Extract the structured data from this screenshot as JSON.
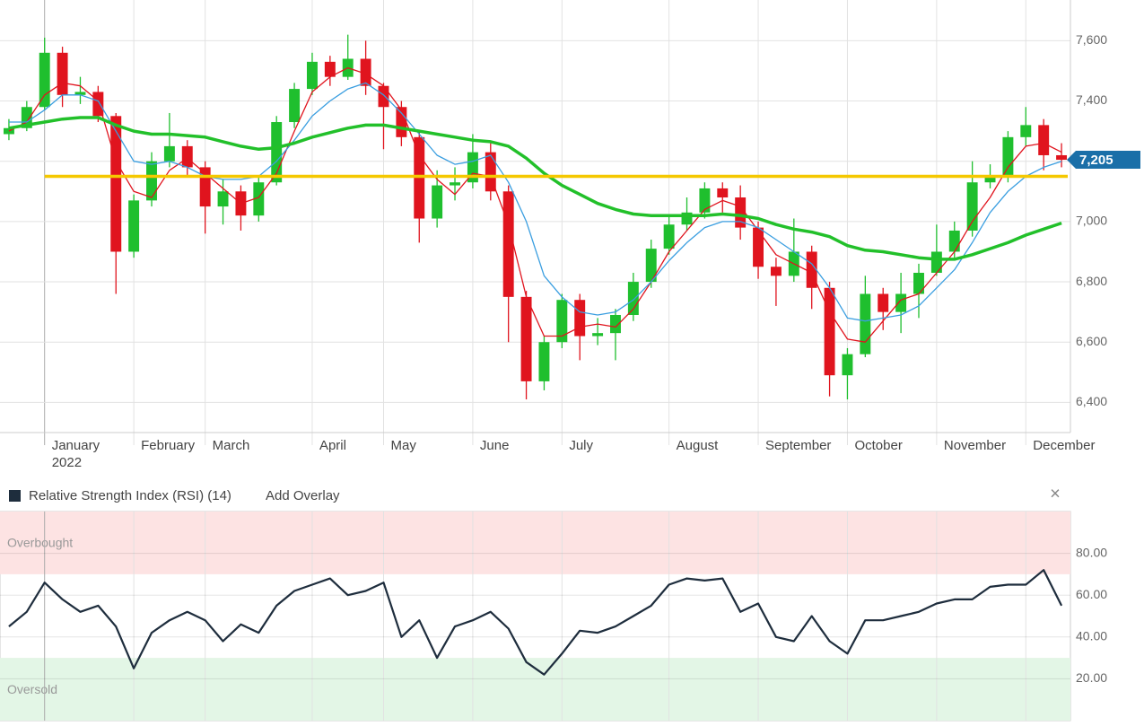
{
  "chart_data": [
    {
      "type": "candlestick",
      "categories": [
        null,
        null,
        "January",
        null,
        null,
        null,
        null,
        "February",
        null,
        null,
        null,
        "March",
        null,
        null,
        null,
        null,
        null,
        "April",
        null,
        null,
        null,
        "May",
        null,
        null,
        null,
        null,
        "June",
        null,
        null,
        null,
        null,
        "July",
        null,
        null,
        null,
        null,
        null,
        "August",
        null,
        null,
        null,
        null,
        "September",
        null,
        null,
        null,
        null,
        "October",
        null,
        null,
        null,
        null,
        "November",
        null,
        null,
        null,
        null,
        "December",
        null,
        null
      ],
      "year_label": "2022",
      "candles": [
        [
          7290,
          7340,
          7270,
          7310
        ],
        [
          7310,
          7400,
          7300,
          7380
        ],
        [
          7380,
          7610,
          7370,
          7560
        ],
        [
          7560,
          7580,
          7380,
          7420
        ],
        [
          7420,
          7480,
          7390,
          7430
        ],
        [
          7430,
          7450,
          7330,
          7350
        ],
        [
          7350,
          7360,
          6760,
          6900
        ],
        [
          6900,
          7090,
          6880,
          7070
        ],
        [
          7070,
          7230,
          7050,
          7200
        ],
        [
          7200,
          7360,
          7180,
          7250
        ],
        [
          7250,
          7270,
          7150,
          7180
        ],
        [
          7180,
          7200,
          6960,
          7050
        ],
        [
          7050,
          7140,
          6990,
          7100
        ],
        [
          7100,
          7120,
          6970,
          7020
        ],
        [
          7020,
          7150,
          7000,
          7130
        ],
        [
          7130,
          7350,
          7120,
          7330
        ],
        [
          7330,
          7460,
          7310,
          7440
        ],
        [
          7440,
          7560,
          7420,
          7530
        ],
        [
          7530,
          7550,
          7450,
          7480
        ],
        [
          7480,
          7620,
          7470,
          7540
        ],
        [
          7540,
          7600,
          7420,
          7450
        ],
        [
          7450,
          7460,
          7240,
          7380
        ],
        [
          7380,
          7400,
          7250,
          7280
        ],
        [
          7280,
          7300,
          6930,
          7010
        ],
        [
          7010,
          7170,
          6980,
          7120
        ],
        [
          7120,
          7180,
          7070,
          7130
        ],
        [
          7130,
          7290,
          7110,
          7230
        ],
        [
          7230,
          7260,
          7070,
          7100
        ],
        [
          7100,
          7120,
          6600,
          6750
        ],
        [
          6750,
          6770,
          6410,
          6470
        ],
        [
          6470,
          6620,
          6440,
          6600
        ],
        [
          6600,
          6760,
          6580,
          6740
        ],
        [
          6740,
          6760,
          6540,
          6620
        ],
        [
          6620,
          6680,
          6590,
          6630
        ],
        [
          6630,
          6710,
          6540,
          6690
        ],
        [
          6690,
          6830,
          6670,
          6800
        ],
        [
          6800,
          6940,
          6780,
          6910
        ],
        [
          6910,
          7020,
          6890,
          6990
        ],
        [
          6990,
          7080,
          6970,
          7030
        ],
        [
          7030,
          7130,
          7010,
          7110
        ],
        [
          7110,
          7130,
          7030,
          7080
        ],
        [
          7080,
          7120,
          6940,
          6980
        ],
        [
          6980,
          7000,
          6810,
          6850
        ],
        [
          6850,
          6880,
          6720,
          6820
        ],
        [
          6820,
          7010,
          6800,
          6900
        ],
        [
          6900,
          6920,
          6710,
          6780
        ],
        [
          6780,
          6800,
          6420,
          6490
        ],
        [
          6490,
          6580,
          6410,
          6560
        ],
        [
          6560,
          6820,
          6550,
          6760
        ],
        [
          6760,
          6780,
          6640,
          6700
        ],
        [
          6700,
          6830,
          6630,
          6760
        ],
        [
          6760,
          6860,
          6680,
          6830
        ],
        [
          6830,
          6990,
          6820,
          6900
        ],
        [
          6900,
          7000,
          6880,
          6970
        ],
        [
          6970,
          7200,
          6950,
          7130
        ],
        [
          7130,
          7190,
          7110,
          7150
        ],
        [
          7150,
          7300,
          7130,
          7280
        ],
        [
          7280,
          7380,
          7250,
          7320
        ],
        [
          7320,
          7340,
          7170,
          7220
        ],
        [
          7220,
          7260,
          7180,
          7205
        ]
      ],
      "up_color": "#1fbf2e",
      "down_color": "#e0141e",
      "series": [
        {
          "color": "#e0141e",
          "width": 1.3,
          "values": [
            7300,
            7330,
            7420,
            7460,
            7450,
            7400,
            7200,
            7100,
            7080,
            7170,
            7210,
            7160,
            7110,
            7060,
            7080,
            7160,
            7300,
            7430,
            7480,
            7510,
            7490,
            7450,
            7370,
            7220,
            7140,
            7090,
            7160,
            7150,
            6990,
            6750,
            6620,
            6620,
            6650,
            6660,
            6650,
            6710,
            6800,
            6900,
            6970,
            7040,
            7070,
            7050,
            6970,
            6890,
            6860,
            6830,
            6700,
            6610,
            6600,
            6670,
            6740,
            6760,
            6830,
            6900,
            7000,
            7080,
            7180,
            7250,
            7260,
            7230
          ]
        },
        {
          "color": "#3a9ee0",
          "width": 1.3,
          "values": [
            7330,
            7330,
            7370,
            7420,
            7420,
            7400,
            7300,
            7200,
            7190,
            7200,
            7180,
            7150,
            7140,
            7140,
            7150,
            7200,
            7270,
            7350,
            7400,
            7440,
            7460,
            7420,
            7360,
            7290,
            7220,
            7190,
            7200,
            7220,
            7130,
            7000,
            6820,
            6750,
            6700,
            6690,
            6700,
            6740,
            6800,
            6870,
            6930,
            6980,
            7000,
            7000,
            6980,
            6940,
            6900,
            6860,
            6780,
            6680,
            6670,
            6680,
            6690,
            6720,
            6780,
            6840,
            6930,
            7030,
            7100,
            7150,
            7180,
            7200
          ]
        },
        {
          "color": "#22c02a",
          "width": 3.5,
          "values": [
            7310,
            7320,
            7330,
            7340,
            7345,
            7345,
            7320,
            7300,
            7290,
            7290,
            7285,
            7280,
            7265,
            7250,
            7240,
            7245,
            7260,
            7280,
            7295,
            7310,
            7320,
            7320,
            7310,
            7300,
            7290,
            7280,
            7270,
            7265,
            7250,
            7210,
            7160,
            7120,
            7090,
            7060,
            7040,
            7025,
            7020,
            7020,
            7020,
            7020,
            7025,
            7020,
            7010,
            6990,
            6975,
            6965,
            6950,
            6920,
            6905,
            6900,
            6890,
            6880,
            6875,
            6875,
            6890,
            6910,
            6930,
            6955,
            6975,
            6995
          ]
        }
      ],
      "hline": {
        "value": 7150,
        "color": "#f5c800"
      },
      "last_price": {
        "value": 7205,
        "label": "7,205",
        "color": "#1a6fa8"
      },
      "ylim": [
        6300,
        7735
      ],
      "yticks": [
        {
          "value": 6400,
          "label": "6,400"
        },
        {
          "value": 6600,
          "label": "6,600"
        },
        {
          "value": 6800,
          "label": "6,800"
        },
        {
          "value": 7000,
          "label": "7,000"
        },
        {
          "value": 7200,
          "label": "7,200"
        },
        {
          "value": 7400,
          "label": "7,400"
        },
        {
          "value": 7600,
          "label": "7,600"
        }
      ],
      "grid": true
    },
    {
      "type": "line",
      "title": "Relative Strength Index (RSI) (14)",
      "button": "Add Overlay",
      "close": "×",
      "color": "#1e2d3d",
      "values": [
        45,
        52,
        66,
        58,
        52,
        55,
        45,
        25,
        42,
        48,
        52,
        48,
        38,
        46,
        42,
        55,
        62,
        65,
        68,
        60,
        62,
        66,
        40,
        48,
        30,
        45,
        48,
        52,
        44,
        28,
        22,
        32,
        43,
        42,
        45,
        50,
        55,
        65,
        68,
        67,
        68,
        52,
        56,
        40,
        38,
        50,
        38,
        32,
        48,
        48,
        50,
        52,
        56,
        58,
        58,
        64,
        65,
        65,
        72,
        55
      ],
      "bands": [
        {
          "label": "Overbought",
          "range": [
            70,
            100
          ],
          "color": "#fde3e3"
        },
        {
          "label": "Oversold",
          "range": [
            0,
            30
          ],
          "color": "#e3f6e6"
        }
      ],
      "ylim": [
        0,
        100
      ],
      "yticks": [
        {
          "value": 20,
          "label": "20.00"
        },
        {
          "value": 40,
          "label": "40.00"
        },
        {
          "value": 60,
          "label": "60.00"
        },
        {
          "value": 80,
          "label": "80.00"
        }
      ],
      "grid": true
    }
  ]
}
